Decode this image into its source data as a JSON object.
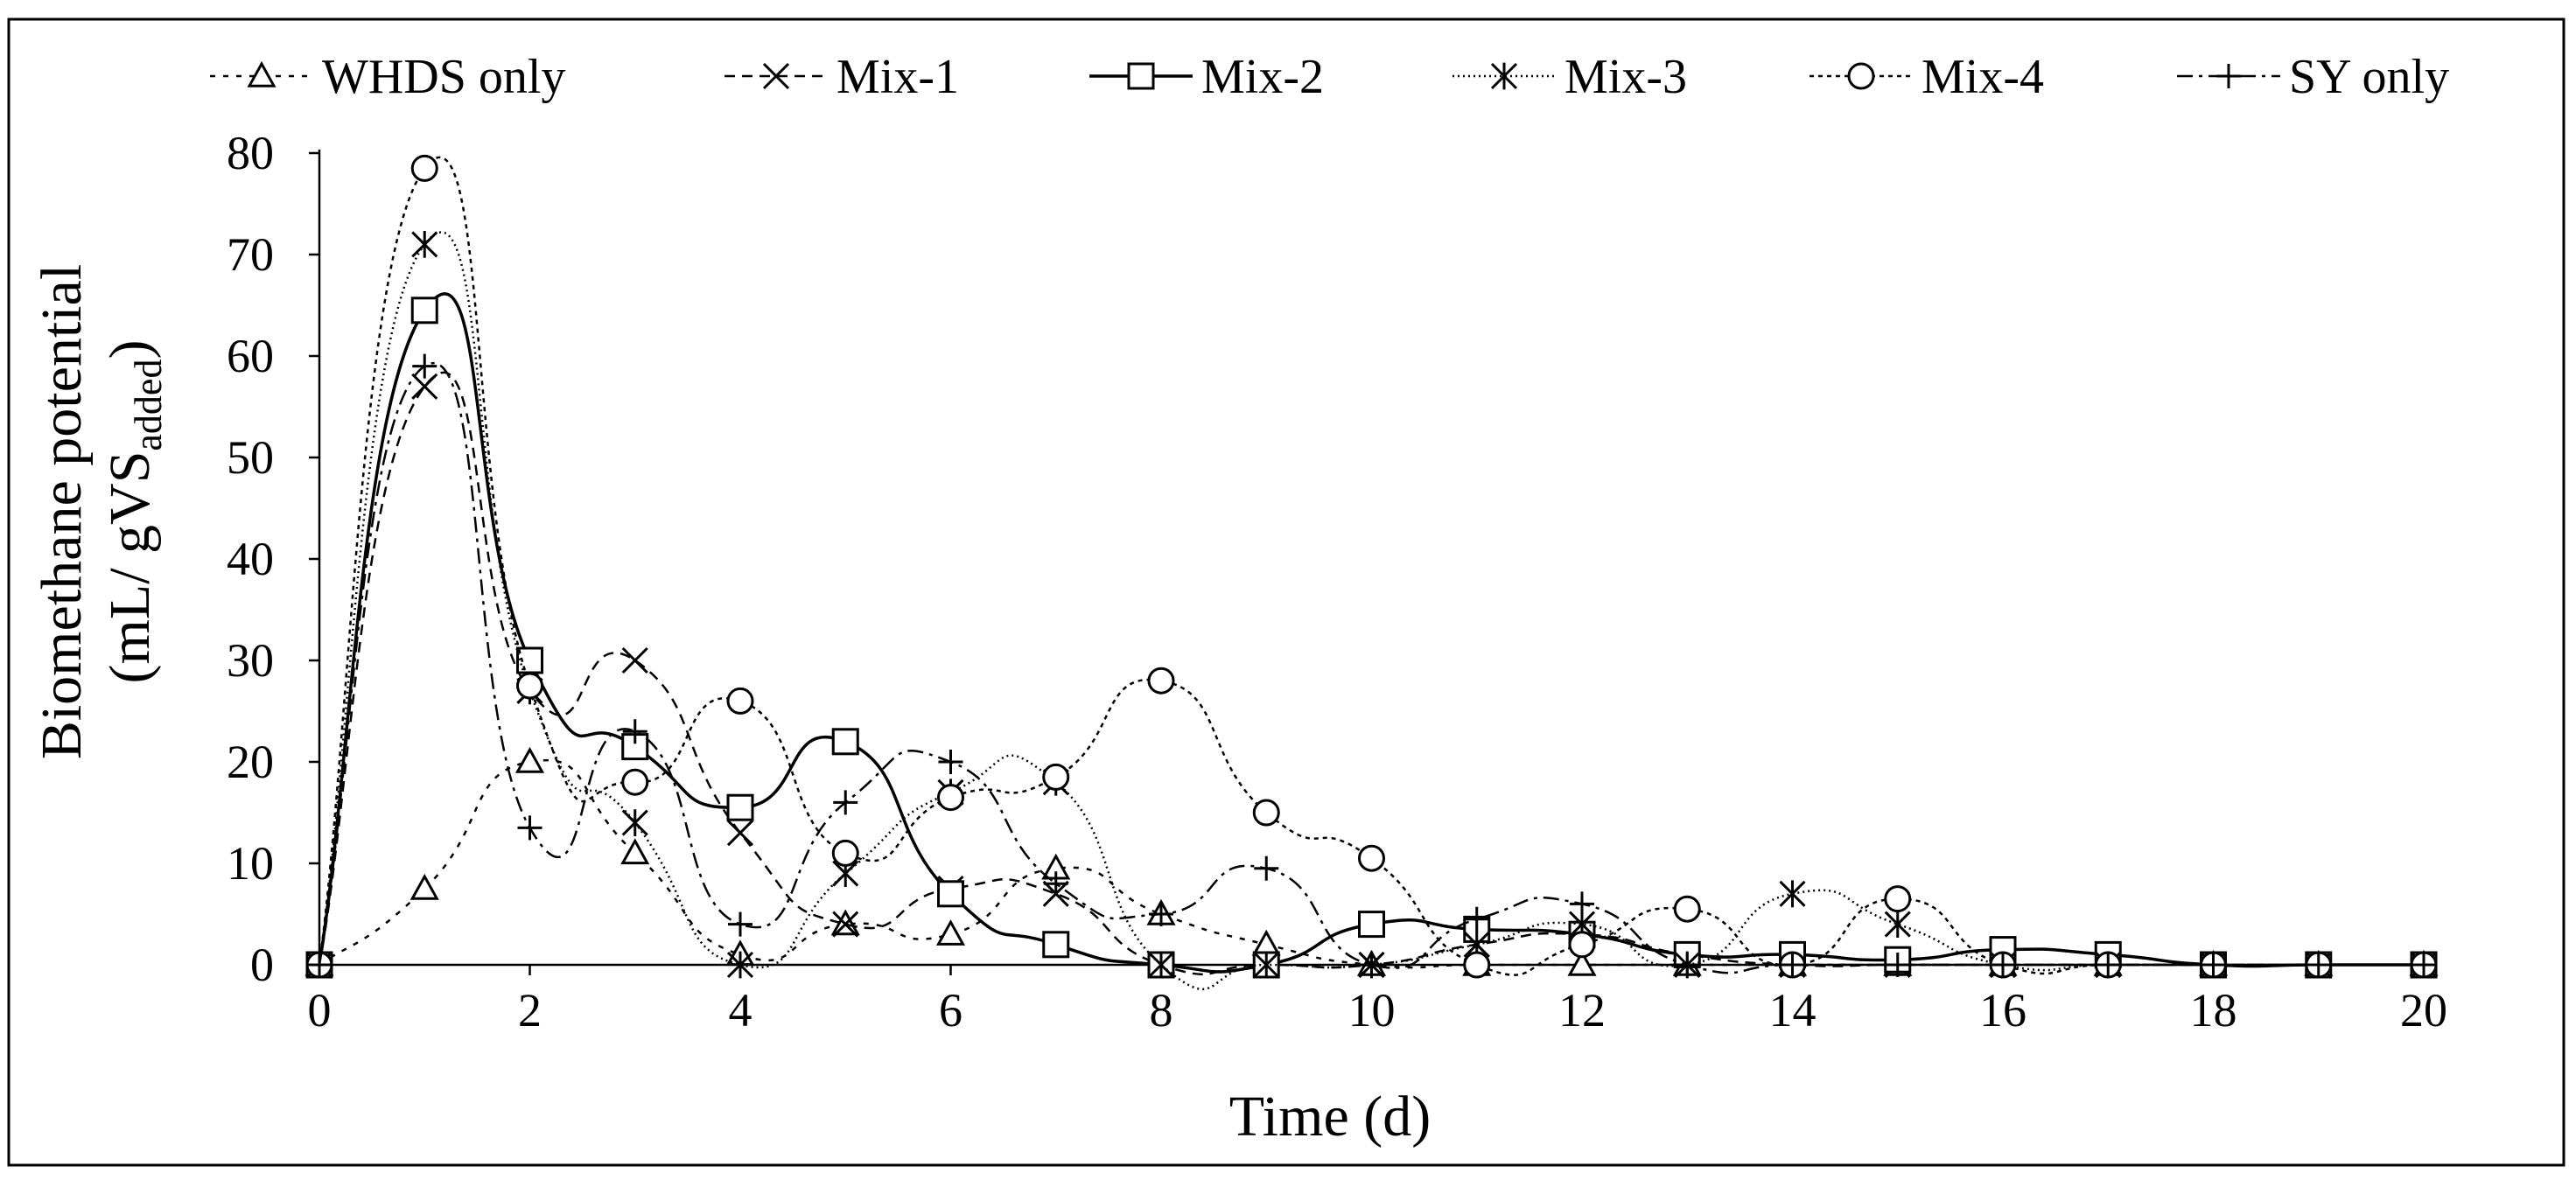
{
  "chart_data": {
    "type": "line",
    "title": "",
    "xlabel": "Time (d)",
    "ylabel_line1": "Biomethane potential",
    "ylabel_line2_prefix": "(mL/ gVS",
    "ylabel_line2_subscript": "added",
    "ylabel_line2_suffix": ")",
    "xlim": [
      0,
      20
    ],
    "ylim": [
      0,
      80
    ],
    "xticks": [
      0,
      2,
      4,
      6,
      8,
      10,
      12,
      14,
      16,
      18,
      20
    ],
    "yticks": [
      0,
      10,
      20,
      30,
      40,
      50,
      60,
      70,
      80
    ],
    "grid": false,
    "legend_position": "top",
    "series": [
      {
        "name": "WHDS only",
        "marker": "triangle",
        "dash": "6 9",
        "stroke_width": 2.5,
        "x": [
          0,
          1,
          2,
          3,
          4,
          5,
          6,
          7,
          8,
          9,
          10,
          11,
          12,
          13,
          14,
          15,
          16,
          17,
          18,
          19,
          20
        ],
        "values": [
          0,
          7.5,
          20,
          11,
          1,
          4,
          3,
          9.5,
          5,
          2,
          0,
          0,
          0,
          0,
          0,
          0,
          0,
          0,
          0,
          0,
          0
        ]
      },
      {
        "name": "Mix-1",
        "marker": "x",
        "dash": "12 8",
        "stroke_width": 2.5,
        "x": [
          0,
          1,
          2,
          3,
          4,
          5,
          6,
          7,
          8,
          9,
          10,
          11,
          12,
          13,
          14,
          15,
          16,
          17,
          18,
          19,
          20
        ],
        "values": [
          0,
          57,
          27,
          30,
          13,
          4,
          7.5,
          7,
          0,
          0,
          0,
          2,
          3,
          1,
          0,
          0,
          0,
          0,
          0,
          0,
          0
        ]
      },
      {
        "name": "Mix-2",
        "marker": "square",
        "dash": "",
        "stroke_width": 3.5,
        "x": [
          0,
          1,
          2,
          3,
          4,
          5,
          6,
          7,
          8,
          9,
          10,
          11,
          12,
          13,
          14,
          15,
          16,
          17,
          18,
          19,
          20
        ],
        "values": [
          0,
          64.5,
          30,
          21.5,
          15.5,
          22,
          7,
          2,
          0,
          0,
          4,
          3.5,
          3,
          1,
          1,
          0.5,
          1.5,
          1,
          0,
          0,
          0
        ]
      },
      {
        "name": "Mix-3",
        "marker": "asterisk",
        "dash": "2 4",
        "stroke_width": 2.5,
        "x": [
          0,
          1,
          2,
          3,
          4,
          5,
          6,
          7,
          8,
          9,
          10,
          11,
          12,
          13,
          14,
          15,
          16,
          17,
          18,
          19,
          20
        ],
        "values": [
          0,
          71,
          27,
          14,
          0,
          9,
          17,
          18,
          0,
          0,
          0,
          2,
          4,
          0,
          7,
          4,
          0,
          0,
          0,
          0,
          0
        ]
      },
      {
        "name": "Mix-4",
        "marker": "circle",
        "dash": "5 5",
        "stroke_width": 2.5,
        "x": [
          0,
          1,
          2,
          3,
          4,
          5,
          6,
          7,
          8,
          9,
          10,
          11,
          12,
          13,
          14,
          15,
          16,
          17,
          18,
          19,
          20
        ],
        "values": [
          0,
          78.5,
          27.5,
          18,
          26,
          11,
          16.5,
          18.5,
          28,
          15,
          10.5,
          0,
          2,
          5.5,
          0,
          6.5,
          0,
          0,
          0,
          0,
          0
        ]
      },
      {
        "name": "SY only",
        "marker": "plus",
        "dash": "18 7 4 7",
        "stroke_width": 2.5,
        "x": [
          0,
          1,
          2,
          3,
          4,
          5,
          6,
          7,
          8,
          9,
          10,
          11,
          12,
          13,
          14,
          15,
          16,
          17,
          18,
          19,
          20
        ],
        "values": [
          0,
          59,
          13.5,
          23,
          4,
          16,
          20,
          8,
          5,
          9.5,
          0,
          4.5,
          6,
          0,
          0,
          0,
          0,
          0,
          0,
          0,
          0
        ]
      }
    ]
  }
}
